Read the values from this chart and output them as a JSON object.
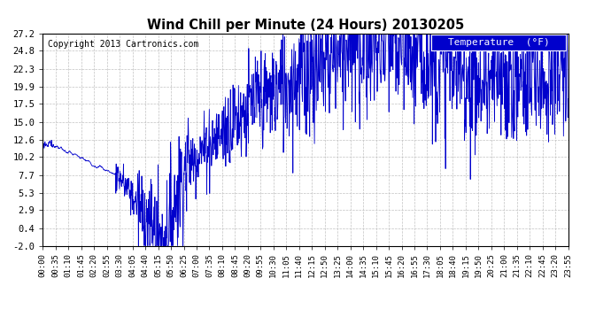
{
  "title": "Wind Chill per Minute (24 Hours) 20130205",
  "copyright": "Copyright 2013 Cartronics.com",
  "legend_label": "Temperature  (°F)",
  "legend_bg": "#0000cc",
  "line_color": "#0000cc",
  "background_color": "#ffffff",
  "grid_color": "#bbbbbb",
  "ylim": [
    -2.0,
    27.2
  ],
  "yticks": [
    -2.0,
    0.4,
    2.9,
    5.3,
    7.7,
    10.2,
    12.6,
    15.0,
    17.5,
    19.9,
    22.3,
    24.8,
    27.2
  ],
  "ytick_labels": [
    "-2.0",
    "0.4",
    "2.9",
    "5.3",
    "7.7",
    "10.2",
    "12.6",
    "15.0",
    "17.5",
    "19.9",
    "22.3",
    "24.8",
    "27.2"
  ],
  "xtick_labels": [
    "00:00",
    "00:35",
    "01:10",
    "01:45",
    "02:20",
    "02:55",
    "03:30",
    "04:05",
    "04:40",
    "05:15",
    "05:50",
    "06:25",
    "07:00",
    "07:35",
    "08:10",
    "08:45",
    "09:20",
    "09:55",
    "10:30",
    "11:05",
    "11:40",
    "12:15",
    "12:50",
    "13:25",
    "14:00",
    "14:35",
    "15:10",
    "15:45",
    "16:20",
    "16:55",
    "17:30",
    "18:05",
    "18:40",
    "19:15",
    "19:50",
    "20:25",
    "21:00",
    "21:35",
    "22:10",
    "22:45",
    "23:20",
    "23:55"
  ],
  "n_minutes": 1440
}
